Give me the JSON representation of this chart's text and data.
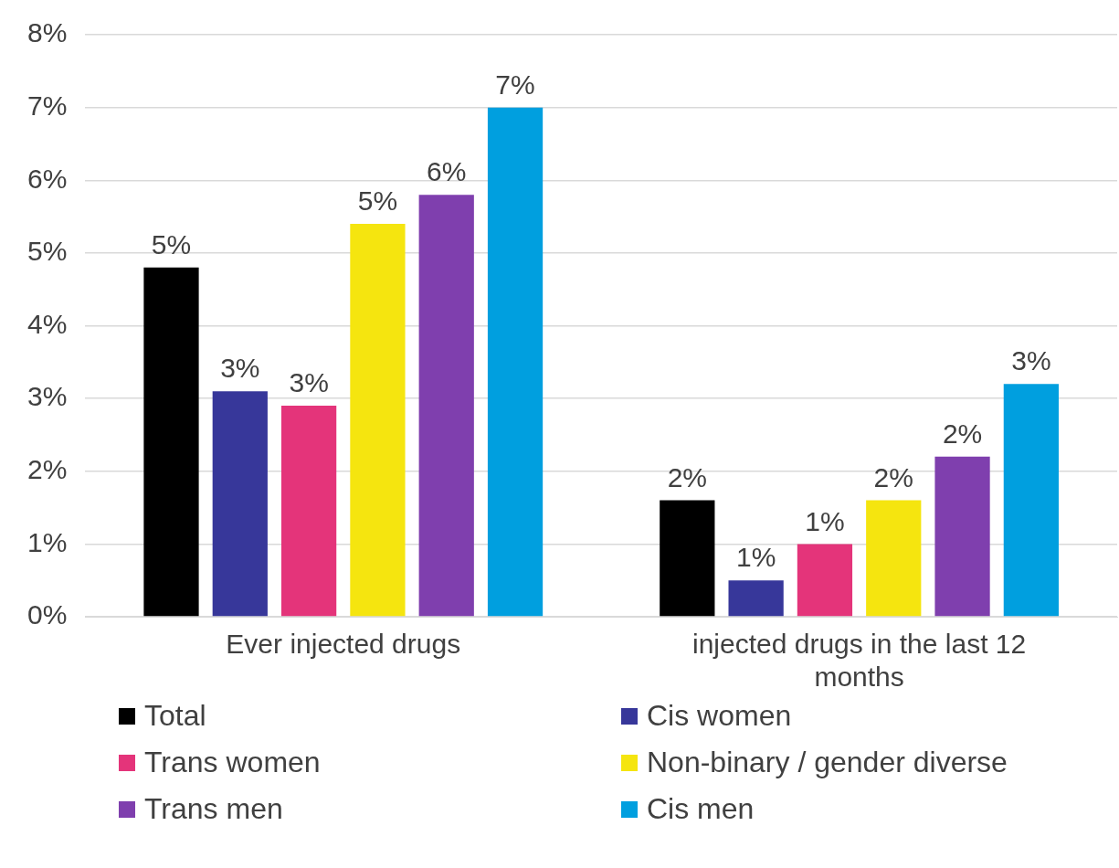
{
  "chart_data": {
    "type": "bar",
    "categories": [
      "Ever injected drugs",
      "injected drugs in the last 12 months"
    ],
    "series": [
      {
        "name": "Total",
        "color": "#000000",
        "values": [
          4.8,
          1.6
        ],
        "value_labels": [
          "5%",
          "2%"
        ]
      },
      {
        "name": "Cis women",
        "color": "#37379a",
        "values": [
          3.1,
          0.5
        ],
        "value_labels": [
          "3%",
          "1%"
        ]
      },
      {
        "name": "Trans women",
        "color": "#e4347a",
        "values": [
          2.9,
          1.0
        ],
        "value_labels": [
          "3%",
          "1%"
        ]
      },
      {
        "name": "Non-binary / gender diverse",
        "color": "#f5e50f",
        "values": [
          5.4,
          1.6
        ],
        "value_labels": [
          "5%",
          "2%"
        ]
      },
      {
        "name": "Trans men",
        "color": "#7f3fae",
        "values": [
          5.8,
          2.2
        ],
        "value_labels": [
          "6%",
          "2%"
        ]
      },
      {
        "name": "Cis men",
        "color": "#009fdf",
        "values": [
          7.0,
          3.2
        ],
        "value_labels": [
          "7%",
          "3%"
        ]
      }
    ],
    "ylim": [
      0,
      8
    ],
    "yticks": [
      {
        "value": 0,
        "label": "0%"
      },
      {
        "value": 1,
        "label": "1%"
      },
      {
        "value": 2,
        "label": "2%"
      },
      {
        "value": 3,
        "label": "3%"
      },
      {
        "value": 4,
        "label": "4%"
      },
      {
        "value": 5,
        "label": "5%"
      },
      {
        "value": 6,
        "label": "6%"
      },
      {
        "value": 7,
        "label": "7%"
      },
      {
        "value": 8,
        "label": "8%"
      }
    ],
    "grid": "y",
    "legend": "bottom"
  }
}
